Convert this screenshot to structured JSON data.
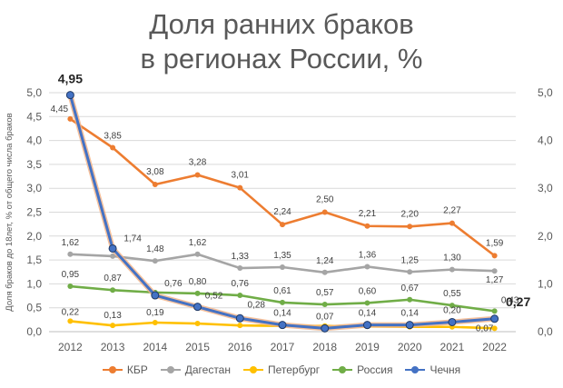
{
  "title_line1": "Доля ранних браков",
  "title_line2": "в регионах России, %",
  "chart_data": {
    "type": "line",
    "title": "Доля ранних браков в регионах России, %",
    "ylabel": "Доля браков до 18лет, % от общего числа браков",
    "xlabel": "",
    "categories": [
      "2012",
      "2013",
      "2014",
      "2015",
      "2016",
      "2017",
      "2018",
      "2019",
      "2020",
      "2021",
      "2022"
    ],
    "ylim": [
      0,
      5
    ],
    "yticks_left": [
      "0,0",
      "0,5",
      "1,0",
      "1,5",
      "2,0",
      "2,5",
      "3,0",
      "3,5",
      "4,0",
      "4,5",
      "5,0"
    ],
    "yticks_right": [
      "0,0",
      "1,0",
      "2,0",
      "3,0",
      "4,0",
      "5,0"
    ],
    "grid": true,
    "legend_position": "bottom",
    "series": [
      {
        "name": "КБР",
        "color": "#ED7D31",
        "values": [
          4.45,
          3.85,
          3.08,
          3.28,
          3.01,
          2.24,
          2.5,
          2.21,
          2.2,
          2.27,
          1.59
        ],
        "labels": [
          "4,45",
          "3,85",
          "3,08",
          "3,28",
          "3,01",
          "2,24",
          "2,50",
          "2,21",
          "2,20",
          "2,27",
          "1,59"
        ]
      },
      {
        "name": "Дагестан",
        "color": "#A5A5A5",
        "values": [
          1.62,
          1.58,
          1.48,
          1.62,
          1.33,
          1.35,
          1.24,
          1.36,
          1.25,
          1.3,
          1.27
        ],
        "labels": [
          "1,62",
          "",
          "1,48",
          "1,62",
          "1,33",
          "1,35",
          "1,24",
          "1,36",
          "1,25",
          "1,30",
          "1,27"
        ]
      },
      {
        "name": "Петербург",
        "color": "#FFC000",
        "values": [
          0.22,
          0.13,
          0.19,
          0.17,
          0.13,
          0.12,
          0.12,
          0.11,
          0.1,
          0.1,
          0.07
        ],
        "labels": [
          "0,22",
          "0,13",
          "0,19",
          "",
          "",
          "",
          "",
          "",
          "",
          "",
          "0,07"
        ]
      },
      {
        "name": "Россия",
        "color": "#70AD47",
        "values": [
          0.95,
          0.87,
          0.82,
          0.8,
          0.76,
          0.61,
          0.57,
          0.6,
          0.67,
          0.55,
          0.43
        ],
        "labels": [
          "0,95",
          "0,87",
          "",
          "0,80",
          "0,76",
          "0,61",
          "0,57",
          "0,60",
          "0,67",
          "0,55",
          "0,43"
        ]
      },
      {
        "name": "Чечня",
        "color": "#4472C4",
        "values": [
          4.95,
          1.74,
          0.76,
          0.52,
          0.28,
          0.14,
          0.07,
          0.14,
          0.14,
          0.2,
          0.27
        ],
        "labels": [
          "4,95",
          "1,74",
          "0,76",
          "0,52",
          "0,28",
          "0,14",
          "0,07",
          "0,14",
          "0,14",
          "0,20",
          "0,27"
        ]
      }
    ]
  }
}
